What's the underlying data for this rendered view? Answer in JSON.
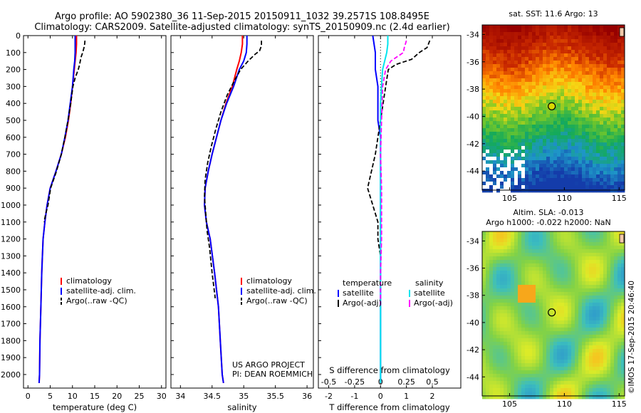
{
  "header": {
    "title_line1": "Argo profile: AO 5902380_36 11-Sep-2015 20150911_1032 39.2571S 108.8495E",
    "title_line2": "Climatology: CARS2009. Satellite-adjusted climatology: synTS_20150909.nc (2.4d earlier)"
  },
  "colors": {
    "climatology": "#ff0000",
    "satellite": "#0000ff",
    "argo": "#000000",
    "s_satellite": "#00e5ee",
    "s_argo": "#ff00ff"
  },
  "chart_data": [
    {
      "type": "line",
      "name": "temperature",
      "xlabel": "temperature (deg C)",
      "ylabel": "",
      "xlim": [
        -1,
        31
      ],
      "ylim": [
        2080,
        0
      ],
      "xticks": [
        0,
        5,
        10,
        15,
        20,
        25,
        30
      ],
      "yticks": [
        0,
        100,
        200,
        300,
        400,
        500,
        600,
        700,
        800,
        900,
        1000,
        1100,
        1200,
        1300,
        1400,
        1500,
        1600,
        1700,
        1800,
        1900,
        2000
      ],
      "legend": [
        "climatology",
        "satellite-adj. clim.",
        "Argo(..raw -QC)"
      ],
      "series": [
        {
          "name": "climatology",
          "color": "#ff0000",
          "x": [
            10.9,
            10.9,
            10.8,
            10.6,
            10.4,
            10.0,
            9.6,
            9.1,
            8.4,
            7.5,
            6.3,
            5.0,
            4.3,
            3.8,
            3.4,
            3.1,
            2.9,
            2.7,
            2.6,
            2.5
          ],
          "y": [
            0,
            50,
            100,
            150,
            200,
            300,
            400,
            500,
            600,
            700,
            800,
            900,
            1000,
            1100,
            1200,
            1400,
            1600,
            1800,
            2000,
            2050
          ]
        },
        {
          "name": "satellite-adj. clim.",
          "color": "#0000ff",
          "x": [
            10.6,
            10.6,
            10.6,
            10.5,
            10.3,
            10.0,
            9.5,
            9.0,
            8.3,
            7.5,
            6.3,
            5.0,
            4.3,
            3.8,
            3.4,
            3.1,
            2.9,
            2.7,
            2.6,
            2.5
          ],
          "y": [
            0,
            50,
            100,
            150,
            200,
            300,
            400,
            500,
            600,
            700,
            800,
            900,
            1000,
            1100,
            1200,
            1400,
            1600,
            1800,
            2000,
            2050
          ]
        },
        {
          "name": "Argo(..raw -QC)",
          "color": "#000000",
          "dashed": true,
          "x": [
            12.8,
            12.7,
            12.3,
            11.9,
            11.6,
            11.3,
            10.6,
            10.1,
            9.6,
            9.0,
            8.3,
            7.5,
            6.4,
            5.1,
            4.5,
            4.0,
            3.6
          ],
          "y": [
            30,
            60,
            100,
            130,
            170,
            200,
            250,
            300,
            400,
            500,
            600,
            700,
            800,
            900,
            1000,
            1050,
            1100
          ]
        }
      ]
    },
    {
      "type": "line",
      "name": "salinity",
      "xlabel": "salinity",
      "ylabel": "",
      "xlim": [
        33.85,
        36.1
      ],
      "ylim": [
        2080,
        0
      ],
      "xticks": [
        34,
        34.5,
        35,
        35.5,
        36
      ],
      "xticklabels": [
        "34",
        "34.5",
        "35",
        "35.5",
        "36"
      ],
      "legend": [
        "climatology",
        "satellite-adj. clim.",
        "Argo(..raw -QC)"
      ],
      "annotations": [
        "US ARGO PROJECT",
        "PI: DEAN ROEMMICH"
      ],
      "series": [
        {
          "name": "climatology",
          "color": "#ff0000",
          "x": [
            34.98,
            34.98,
            34.96,
            34.93,
            34.89,
            34.82,
            34.72,
            34.64,
            34.57,
            34.5,
            34.44,
            34.39,
            34.38,
            34.41,
            34.47,
            34.54,
            34.6,
            34.63,
            34.66,
            34.68
          ],
          "y": [
            0,
            50,
            100,
            150,
            200,
            300,
            400,
            500,
            600,
            700,
            800,
            900,
            1000,
            1100,
            1200,
            1400,
            1600,
            1800,
            2000,
            2050
          ]
        },
        {
          "name": "satellite-adj. clim.",
          "color": "#0000ff",
          "x": [
            35.05,
            35.05,
            35.04,
            35.0,
            34.93,
            34.84,
            34.73,
            34.64,
            34.57,
            34.5,
            34.44,
            34.39,
            34.38,
            34.41,
            34.47,
            34.54,
            34.6,
            34.63,
            34.66,
            34.68
          ],
          "y": [
            0,
            50,
            100,
            150,
            200,
            300,
            400,
            500,
            600,
            700,
            800,
            900,
            1000,
            1100,
            1200,
            1400,
            1600,
            1800,
            2000,
            2050
          ]
        },
        {
          "name": "Argo(..raw -QC)",
          "color": "#000000",
          "dashed": true,
          "x": [
            35.28,
            35.28,
            35.25,
            35.18,
            35.07,
            34.95,
            34.86,
            34.74,
            34.64,
            34.56,
            34.49,
            34.43,
            34.39,
            34.38,
            34.4,
            34.42,
            34.46,
            34.5,
            34.55
          ],
          "y": [
            30,
            60,
            90,
            110,
            150,
            200,
            260,
            350,
            450,
            550,
            650,
            750,
            850,
            950,
            1050,
            1150,
            1250,
            1400,
            1550
          ]
        }
      ]
    },
    {
      "type": "line",
      "name": "difference from climatology",
      "xlabel": "T difference from climatology",
      "xlabel_top": "S difference from climatology",
      "ylabel": "",
      "xlim": [
        -2.4,
        3.1
      ],
      "ylim": [
        2080,
        0
      ],
      "xticks": [
        -2,
        -1,
        0,
        1,
        2
      ],
      "xticks_top": [
        -0.5,
        -0.25,
        0,
        0.25,
        0.5
      ],
      "xticklabels_top": [
        "-0.5",
        "-0.25",
        "0",
        "0.25",
        "0.5"
      ],
      "legend_temperature": {
        "title": "temperature",
        "items": [
          "satellite",
          "Argo(-adj)"
        ]
      },
      "legend_salinity": {
        "title": "salinity",
        "items": [
          "satellite",
          "Argo(-adj)"
        ]
      },
      "series": [
        {
          "name": "temperature satellite",
          "color": "#0000ff",
          "x": [
            -0.3,
            -0.2,
            -0.2,
            -0.1,
            -0.1,
            -0.1,
            0.0,
            0.0,
            0.0,
            0.0,
            0.0,
            0.0,
            0.0,
            0.0,
            0.0
          ],
          "y": [
            0,
            100,
            200,
            300,
            400,
            500,
            600,
            700,
            800,
            900,
            1000,
            1200,
            1400,
            1800,
            2050
          ]
        },
        {
          "name": "temperature Argo(-adj)",
          "color": "#000000",
          "dashed": true,
          "x": [
            1.9,
            1.8,
            1.5,
            1.2,
            0.6,
            0.3,
            0.2,
            0.1,
            0.0,
            -0.1,
            -0.2,
            -0.5,
            -0.3,
            -0.1,
            -0.1,
            0.0
          ],
          "y": [
            30,
            70,
            100,
            140,
            170,
            200,
            300,
            400,
            500,
            600,
            700,
            900,
            1000,
            1100,
            1200,
            1300
          ]
        },
        {
          "name": "salinity satellite",
          "color": "#00e5ee",
          "x": [
            0.07,
            0.07,
            0.06,
            0.04,
            0.02,
            0.01,
            0.0,
            0.0,
            0.0,
            0.0,
            0.0,
            0.0,
            0.0,
            0.0
          ],
          "y": [
            0,
            50,
            100,
            150,
            200,
            300,
            400,
            500,
            700,
            900,
            1100,
            1400,
            1800,
            2050
          ]
        },
        {
          "name": "salinity Argo(-adj)",
          "color": "#ff00ff",
          "dashed": true,
          "x": [
            0.25,
            0.23,
            0.22,
            0.1,
            0.05,
            0.02,
            0.01,
            0.0,
            0.01,
            0.01,
            0.0,
            0.0,
            0.0
          ],
          "y": [
            30,
            70,
            100,
            150,
            200,
            300,
            500,
            700,
            900,
            1200,
            1400,
            1500,
            1600
          ]
        }
      ]
    },
    {
      "type": "heatmap",
      "name": "sea surface temperature map",
      "title": "sat. SST: 11.6 Argo: 13",
      "xticks": [
        105,
        110,
        115
      ],
      "yticks": [
        -34,
        -36,
        -38,
        -40,
        -42,
        -44
      ],
      "xlim": [
        102.5,
        115.5
      ],
      "ylim": [
        -45.4,
        -33.3
      ],
      "marker": {
        "lon": 108.85,
        "lat": -39.26
      }
    },
    {
      "type": "heatmap",
      "name": "sea level anomaly map",
      "title": "Altim. SLA: -0.013",
      "subtitle": "Argo h1000: -0.022 h2000: NaN",
      "xticks": [
        105,
        110,
        115
      ],
      "yticks": [
        -34,
        -36,
        -38,
        -40,
        -42,
        -44
      ],
      "xlim": [
        102.5,
        115.5
      ],
      "ylim": [
        -45.4,
        -33.3
      ],
      "marker": {
        "lon": 108.85,
        "lat": -39.26
      }
    }
  ],
  "credit": "©IMOS 17-Sep-2015 20:46:40"
}
